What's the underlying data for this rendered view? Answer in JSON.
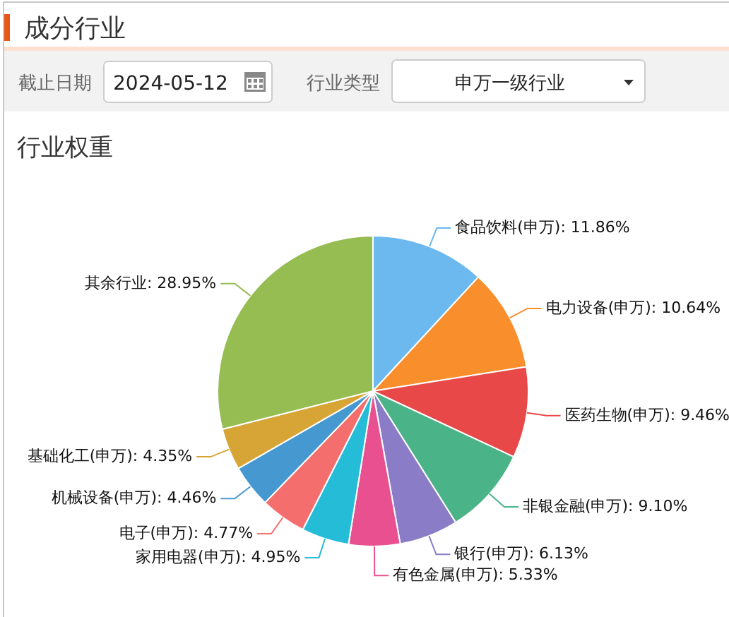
{
  "chart_data": {
    "type": "pie",
    "title": "行业权重",
    "annotations": [
      "成分行业",
      "截止日期",
      "2024-05-12",
      "行业类型",
      "申万一级行业"
    ],
    "categories": [
      "食品饮料(申万)",
      "电力设备(申万)",
      "医药生物(申万)",
      "非银金融(申万)",
      "银行(申万)",
      "有色金属(申万)",
      "家用电器(申万)",
      "电子(申万)",
      "机械设备(申万)",
      "基础化工(申万)",
      "其余行业"
    ],
    "values": [
      11.86,
      10.64,
      9.46,
      9.1,
      6.13,
      5.33,
      4.95,
      4.77,
      4.46,
      4.35,
      28.95
    ],
    "value_labels": [
      "11.86%",
      "10.64%",
      "9.46%",
      "9.10%",
      "6.13%",
      "5.33%",
      "4.95%",
      "4.77%",
      "4.46%",
      "4.35%",
      "28.95%"
    ],
    "colors": [
      "#6cb9f0",
      "#f98e2d",
      "#e84848",
      "#4bb388",
      "#8a7cc6",
      "#e8508f",
      "#25bcd8",
      "#f56e6e",
      "#4599d0",
      "#d6a536",
      "#96bd52"
    ]
  }
}
